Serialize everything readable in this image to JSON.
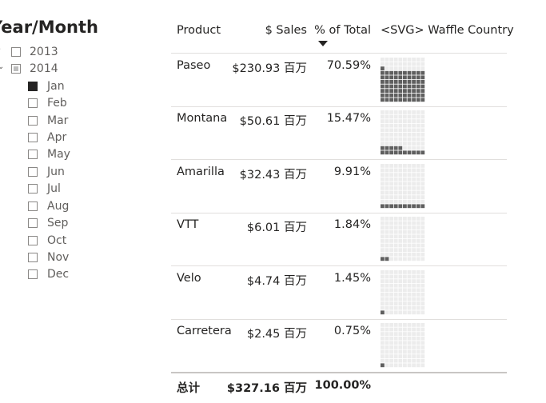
{
  "slicer": {
    "title": "Year/Month",
    "years": [
      {
        "label": "2013",
        "state": "unchecked",
        "expanded": false
      },
      {
        "label": "2014",
        "state": "partial",
        "expanded": true
      }
    ],
    "months": [
      {
        "label": "Jan",
        "checked": true
      },
      {
        "label": "Feb",
        "checked": false
      },
      {
        "label": "Mar",
        "checked": false
      },
      {
        "label": "Apr",
        "checked": false
      },
      {
        "label": "May",
        "checked": false
      },
      {
        "label": "Jun",
        "checked": false
      },
      {
        "label": "Jul",
        "checked": false
      },
      {
        "label": "Aug",
        "checked": false
      },
      {
        "label": "Sep",
        "checked": false
      },
      {
        "label": "Oct",
        "checked": false
      },
      {
        "label": "Nov",
        "checked": false
      },
      {
        "label": "Dec",
        "checked": false
      }
    ]
  },
  "table": {
    "headers": {
      "product": "Product",
      "sales": "$ Sales",
      "pct": "% of Total",
      "waffle": "<SVG> Waffle Country"
    },
    "sort": {
      "column": "% of Total",
      "direction": "descending"
    },
    "rows": [
      {
        "product": "Paseo",
        "sales": "$230.93 百万",
        "pct": "70.59%",
        "pct_value": 70.59
      },
      {
        "product": "Montana",
        "sales": "$50.61 百万",
        "pct": "15.47%",
        "pct_value": 15.47
      },
      {
        "product": "Amarilla",
        "sales": "$32.43 百万",
        "pct": "9.91%",
        "pct_value": 9.91
      },
      {
        "product": "VTT",
        "sales": "$6.01 百万",
        "pct": "1.84%",
        "pct_value": 1.84
      },
      {
        "product": "Velo",
        "sales": "$4.74 百万",
        "pct": "1.45%",
        "pct_value": 1.45
      },
      {
        "product": "Carretera",
        "sales": "$2.45 百万",
        "pct": "0.75%",
        "pct_value": 0.75
      }
    ],
    "total": {
      "label": "总计",
      "sales": "$327.16 百万",
      "pct": "100.00%"
    }
  },
  "colors": {
    "waffle_filled": "#5f5f5f",
    "waffle_empty": "#ececec",
    "text": "#252423",
    "muted_text": "#605e5c"
  }
}
